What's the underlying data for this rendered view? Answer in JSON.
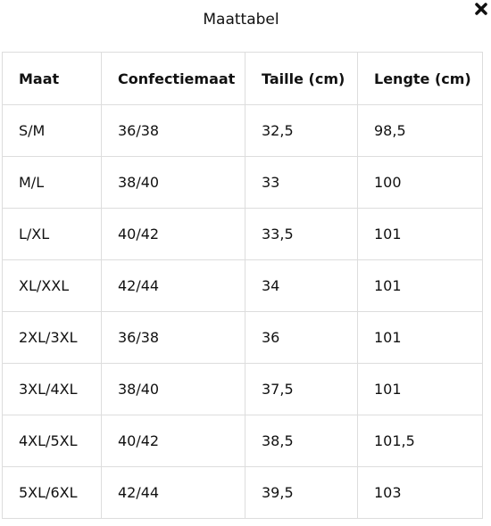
{
  "title": "Maattabel",
  "table": {
    "header": [
      "Maat",
      "Confectiemaat",
      "Taille (cm)",
      "Lengte (cm)"
    ],
    "rows": [
      [
        "S/M",
        "36/38",
        "32,5",
        "98,5"
      ],
      [
        "M/L",
        "38/40",
        "33",
        "100"
      ],
      [
        "L/XL",
        "40/42",
        "33,5",
        "101"
      ],
      [
        "XL/XXL",
        "42/44",
        "34",
        "101"
      ],
      [
        "2XL/3XL",
        "36/38",
        "36",
        "101"
      ],
      [
        "3XL/4XL",
        "38/40",
        "37,5",
        "101"
      ],
      [
        "4XL/5XL",
        "40/42",
        "38,5",
        "101,5"
      ],
      [
        "5XL/6XL",
        "42/44",
        "39,5",
        "103"
      ]
    ]
  }
}
